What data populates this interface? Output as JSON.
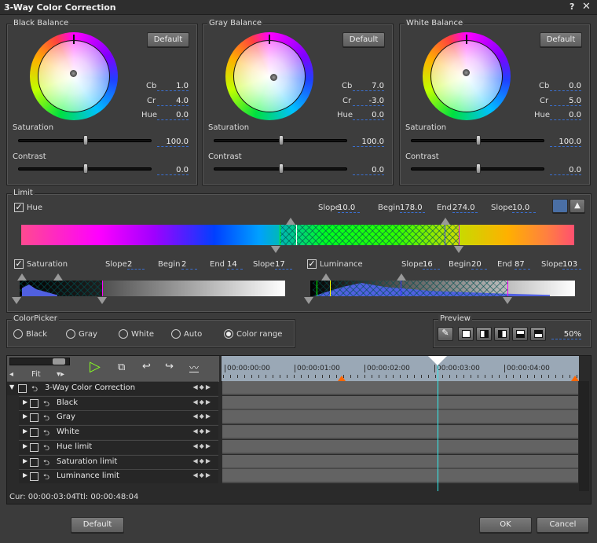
{
  "window": {
    "title": "3-Way Color Correction",
    "help_icon": "?",
    "close_icon": "✕"
  },
  "balances": [
    {
      "title": "Black Balance",
      "default": "Default",
      "cb_label": "Cb",
      "cb": "1.0",
      "cr_label": "Cr",
      "cr": "4.0",
      "hue_label": "Hue",
      "hue": "0.0",
      "saturation_label": "Saturation",
      "saturation": "100.0",
      "contrast_label": "Contrast",
      "contrast": "0.0"
    },
    {
      "title": "Gray Balance",
      "default": "Default",
      "cb_label": "Cb",
      "cb": "7.0",
      "cr_label": "Cr",
      "cr": "-3.0",
      "hue_label": "Hue",
      "hue": "0.0",
      "saturation_label": "Saturation",
      "saturation": "100.0",
      "contrast_label": "Contrast",
      "contrast": "0.0"
    },
    {
      "title": "White Balance",
      "default": "Default",
      "cb_label": "Cb",
      "cb": "0.0",
      "cr_label": "Cr",
      "cr": "5.0",
      "hue_label": "Hue",
      "hue": "0.0",
      "saturation_label": "Saturation",
      "saturation": "100.0",
      "contrast_label": "Contrast",
      "contrast": "0.0"
    }
  ],
  "limit": {
    "title": "Limit",
    "hue": {
      "label": "Hue",
      "checked": true,
      "slope1_label": "Slope",
      "slope1": "10.0",
      "begin_label": "Begin",
      "begin": "178.0",
      "end_label": "End",
      "end": "274.0",
      "slope2_label": "Slope",
      "slope2": "10.0"
    },
    "saturation": {
      "label": "Saturation",
      "checked": true,
      "slope1_label": "Slope",
      "slope1": "2",
      "begin_label": "Begin",
      "begin": "2",
      "end_label": "End",
      "end": "14",
      "slope2_label": "Slope",
      "slope2": "17"
    },
    "luminance": {
      "label": "Luminance",
      "checked": true,
      "slope1_label": "Slope",
      "slope1": "16",
      "begin_label": "Begin",
      "begin": "20",
      "end_label": "End",
      "end": "87",
      "slope2_label": "Slope",
      "slope2": "103"
    }
  },
  "colorpicker": {
    "title": "ColorPicker",
    "options": [
      "Black",
      "Gray",
      "White",
      "Auto",
      "Color range"
    ],
    "selected": "Color range"
  },
  "preview": {
    "title": "Preview",
    "zoom": "50%"
  },
  "timeline": {
    "zoom_label": "Fit",
    "ruler": [
      "00:00:00:00",
      "00:00:01:00",
      "00:00:02:00",
      "00:00:03:00",
      "00:00:04:00"
    ],
    "tracks": [
      "3-Way Color Correction",
      "Black",
      "Gray",
      "White",
      "Hue limit",
      "Saturation limit",
      "Luminance limit"
    ],
    "cur": "Cur: 00:00:03:04",
    "ttl": "Ttl: 00:00:48:04"
  },
  "footer": {
    "default": "Default",
    "ok": "OK",
    "cancel": "Cancel"
  }
}
